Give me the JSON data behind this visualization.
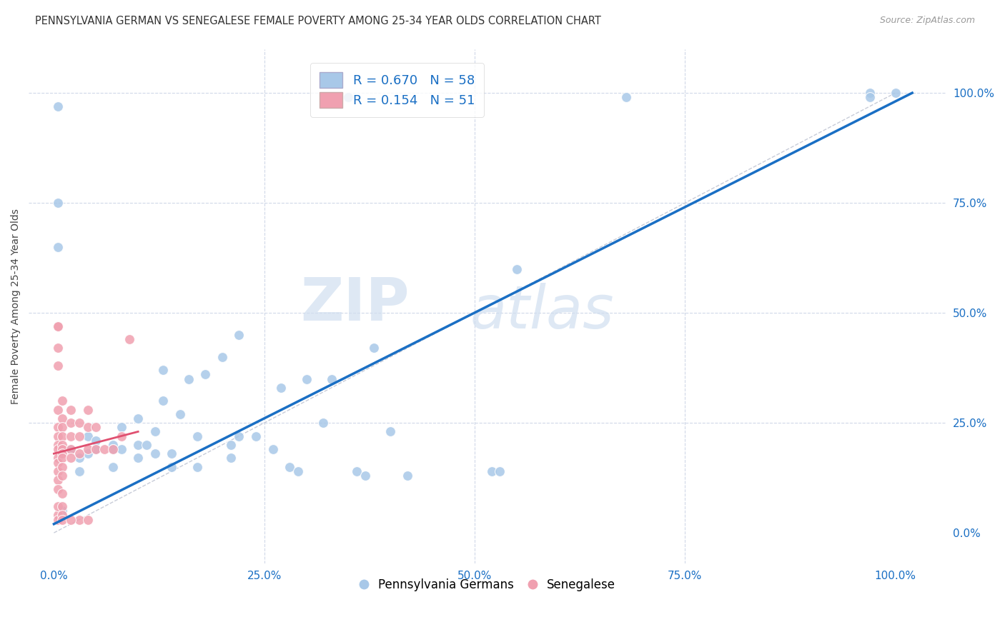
{
  "title": "PENNSYLVANIA GERMAN VS SENEGALESE FEMALE POVERTY AMONG 25-34 YEAR OLDS CORRELATION CHART",
  "source": "Source: ZipAtlas.com",
  "ylabel": "Female Poverty Among 25-34 Year Olds",
  "xticklabels": [
    "0.0%",
    "25.0%",
    "50.0%",
    "75.0%",
    "100.0%"
  ],
  "xticks": [
    0.0,
    0.25,
    0.5,
    0.75,
    1.0
  ],
  "yticklabels": [
    "100.0%",
    "75.0%",
    "50.0%",
    "25.0%",
    "0.0%"
  ],
  "yticks_right": [
    1.0,
    0.75,
    0.5,
    0.25,
    0.0
  ],
  "xlim": [
    -0.03,
    1.06
  ],
  "ylim": [
    -0.07,
    1.1
  ],
  "blue_R": 0.67,
  "blue_N": 58,
  "pink_R": 0.154,
  "pink_N": 51,
  "blue_color": "#a8c8e8",
  "pink_color": "#f0a0b0",
  "blue_line_color": "#1a6fc4",
  "pink_line_color": "#e05070",
  "grid_color": "#d0d8e8",
  "watermark_zip": "ZIP",
  "watermark_atlas": "atlas",
  "blue_line_x0": 0.0,
  "blue_line_y0": 0.02,
  "blue_line_x1": 1.02,
  "blue_line_y1": 1.0,
  "pink_line_x0": 0.0,
  "pink_line_y0": 0.18,
  "pink_line_x1": 0.1,
  "pink_line_y1": 0.23,
  "diag_line_color": "#c8ccd8",
  "blue_scatter_x": [
    0.33,
    0.35,
    0.005,
    0.005,
    0.005,
    0.02,
    0.04,
    0.04,
    0.05,
    0.03,
    0.03,
    0.05,
    0.07,
    0.07,
    0.07,
    0.08,
    0.08,
    0.1,
    0.1,
    0.1,
    0.11,
    0.12,
    0.12,
    0.13,
    0.13,
    0.14,
    0.14,
    0.15,
    0.16,
    0.17,
    0.17,
    0.18,
    0.2,
    0.21,
    0.21,
    0.22,
    0.22,
    0.24,
    0.26,
    0.27,
    0.28,
    0.29,
    0.3,
    0.32,
    0.33,
    0.36,
    0.37,
    0.38,
    0.4,
    0.42,
    0.52,
    0.53,
    0.55,
    0.68,
    0.97,
    0.97,
    1.0,
    0.01
  ],
  "blue_scatter_y": [
    0.99,
    0.99,
    0.97,
    0.75,
    0.65,
    0.19,
    0.22,
    0.18,
    0.19,
    0.14,
    0.17,
    0.21,
    0.2,
    0.19,
    0.15,
    0.19,
    0.24,
    0.17,
    0.2,
    0.26,
    0.2,
    0.18,
    0.23,
    0.37,
    0.3,
    0.18,
    0.15,
    0.27,
    0.35,
    0.15,
    0.22,
    0.36,
    0.4,
    0.17,
    0.2,
    0.45,
    0.22,
    0.22,
    0.19,
    0.33,
    0.15,
    0.14,
    0.35,
    0.25,
    0.35,
    0.14,
    0.13,
    0.42,
    0.23,
    0.13,
    0.14,
    0.14,
    0.6,
    0.99,
    1.0,
    0.99,
    1.0,
    0.05
  ],
  "pink_scatter_x": [
    0.005,
    0.005,
    0.005,
    0.005,
    0.005,
    0.005,
    0.005,
    0.005,
    0.005,
    0.005,
    0.005,
    0.005,
    0.005,
    0.005,
    0.01,
    0.01,
    0.01,
    0.01,
    0.01,
    0.01,
    0.01,
    0.01,
    0.01,
    0.01,
    0.02,
    0.02,
    0.02,
    0.02,
    0.02,
    0.03,
    0.03,
    0.03,
    0.04,
    0.04,
    0.04,
    0.05,
    0.05,
    0.06,
    0.07,
    0.08,
    0.09,
    0.005,
    0.005,
    0.005,
    0.01,
    0.01,
    0.01,
    0.03,
    0.04,
    0.01,
    0.02
  ],
  "pink_scatter_y": [
    0.47,
    0.47,
    0.42,
    0.38,
    0.28,
    0.24,
    0.22,
    0.2,
    0.19,
    0.17,
    0.16,
    0.14,
    0.12,
    0.04,
    0.3,
    0.26,
    0.24,
    0.22,
    0.2,
    0.19,
    0.18,
    0.17,
    0.15,
    0.13,
    0.28,
    0.25,
    0.22,
    0.19,
    0.17,
    0.25,
    0.22,
    0.18,
    0.28,
    0.24,
    0.19,
    0.24,
    0.19,
    0.19,
    0.19,
    0.22,
    0.44,
    0.1,
    0.06,
    0.03,
    0.09,
    0.06,
    0.04,
    0.03,
    0.03,
    0.03,
    0.03
  ],
  "background_color": "#ffffff",
  "title_fontsize": 10.5,
  "axis_label_fontsize": 10,
  "tick_fontsize": 11,
  "legend_fontsize": 13
}
